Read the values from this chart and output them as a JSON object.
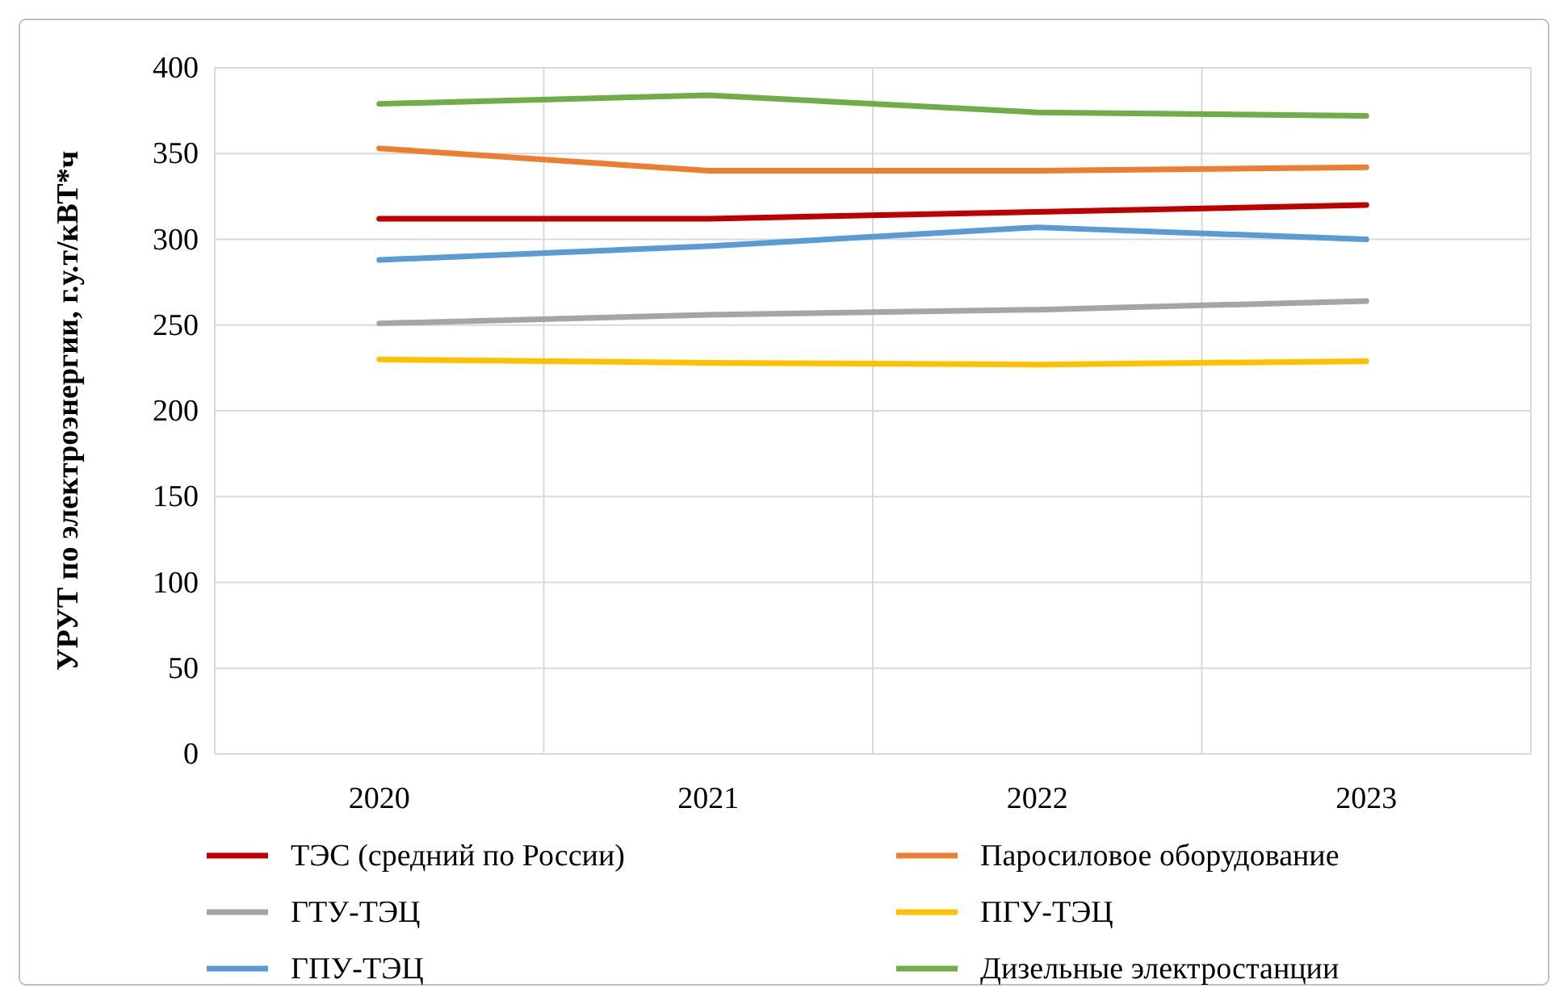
{
  "chart_data": {
    "type": "line",
    "ylabel": "УРУТ по электроэнергии, г.у.т/кВТ*ч",
    "categories": [
      "2020",
      "2021",
      "2022",
      "2023"
    ],
    "ylim": [
      0,
      400
    ],
    "yticks": [
      0,
      50,
      100,
      150,
      200,
      250,
      300,
      350,
      400
    ],
    "grid": true,
    "legend": "bottom",
    "marker": "none",
    "line_style": "solid",
    "series": [
      {
        "name": "ТЭС (средний по России)",
        "color": "#c00000",
        "values": [
          312,
          312,
          316,
          320
        ]
      },
      {
        "name": "Паросиловое оборудование",
        "color": "#ed7d31",
        "values": [
          353,
          340,
          340,
          342
        ]
      },
      {
        "name": "ГТУ-ТЭЦ",
        "color": "#a5a5a5",
        "values": [
          251,
          256,
          259,
          264
        ]
      },
      {
        "name": "ПГУ-ТЭЦ",
        "color": "#ffc000",
        "values": [
          230,
          228,
          227,
          229
        ]
      },
      {
        "name": "ГПУ-ТЭЦ",
        "color": "#5b9bd5",
        "values": [
          288,
          296,
          307,
          300
        ]
      },
      {
        "name": "Дизельные электростанции",
        "color": "#70ad47",
        "values": [
          379,
          384,
          374,
          372
        ]
      }
    ]
  }
}
